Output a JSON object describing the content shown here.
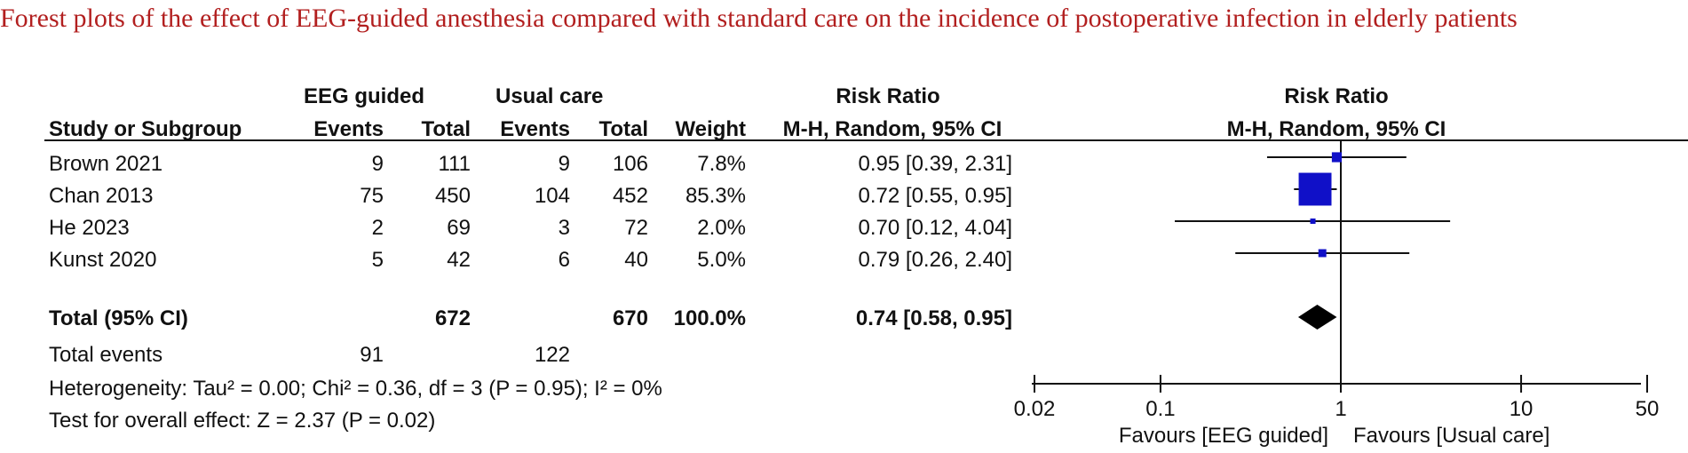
{
  "title": "Forest plots of the effect of EEG-guided anesthesia compared with standard care on the incidence of postoperative infection in elderly patients",
  "table": {
    "group1_label": "EEG guided",
    "group2_label": "Usual care",
    "rr_header": "Risk Ratio",
    "col_headers": {
      "study": "Study or Subgroup",
      "events1": "Events",
      "total1": "Total",
      "events2": "Events",
      "total2": "Total",
      "weight": "Weight",
      "method": "M-H, Random, 95% CI"
    },
    "rows": [
      {
        "study": "Brown 2021",
        "events1": "9",
        "total1": "111",
        "events2": "9",
        "total2": "106",
        "weight": "7.8%",
        "ci": "0.95 [0.39, 2.31]"
      },
      {
        "study": "Chan 2013",
        "events1": "75",
        "total1": "450",
        "events2": "104",
        "total2": "452",
        "weight": "85.3%",
        "ci": "0.72 [0.55, 0.95]"
      },
      {
        "study": "He 2023",
        "events1": "2",
        "total1": "69",
        "events2": "3",
        "total2": "72",
        "weight": "2.0%",
        "ci": "0.70 [0.12, 4.04]"
      },
      {
        "study": "Kunst 2020",
        "events1": "5",
        "total1": "42",
        "events2": "6",
        "total2": "40",
        "weight": "5.0%",
        "ci": "0.79 [0.26, 2.40]"
      }
    ],
    "total": {
      "label": "Total (95% CI)",
      "total1": "672",
      "total2": "670",
      "weight": "100.0%",
      "ci": "0.74 [0.58, 0.95]"
    },
    "total_events": {
      "label": "Total events",
      "events1": "91",
      "events2": "122"
    },
    "heterogeneity": "Heterogeneity: Tau² = 0.00; Chi² = 0.36, df = 3 (P = 0.95); I² = 0%",
    "overall_effect": "Test for overall effect: Z = 2.37 (P = 0.02)"
  },
  "chart_data": {
    "type": "forest",
    "title": "Risk Ratio",
    "subtitle": "M-H, Random, 95% CI",
    "scale": "log",
    "xlim": [
      0.02,
      50
    ],
    "ticks": [
      0.02,
      0.1,
      1,
      10,
      50
    ],
    "tick_labels": [
      "0.02",
      "0.1",
      "1",
      "10",
      "50"
    ],
    "null_line": 1,
    "studies": [
      {
        "name": "Brown 2021",
        "rr": 0.95,
        "lower": 0.39,
        "upper": 2.31,
        "weight": 7.8
      },
      {
        "name": "Chan 2013",
        "rr": 0.72,
        "lower": 0.55,
        "upper": 0.95,
        "weight": 85.3
      },
      {
        "name": "He 2023",
        "rr": 0.7,
        "lower": 0.12,
        "upper": 4.04,
        "weight": 2.0
      },
      {
        "name": "Kunst 2020",
        "rr": 0.79,
        "lower": 0.26,
        "upper": 2.4,
        "weight": 5.0
      }
    ],
    "pooled": {
      "rr": 0.74,
      "lower": 0.58,
      "upper": 0.95
    },
    "favours_left": "Favours [EEG guided]",
    "favours_right": "Favours [Usual care]",
    "colors": {
      "study_box": "#1010c8",
      "pooled": "#000000",
      "lines": "#111111"
    }
  }
}
